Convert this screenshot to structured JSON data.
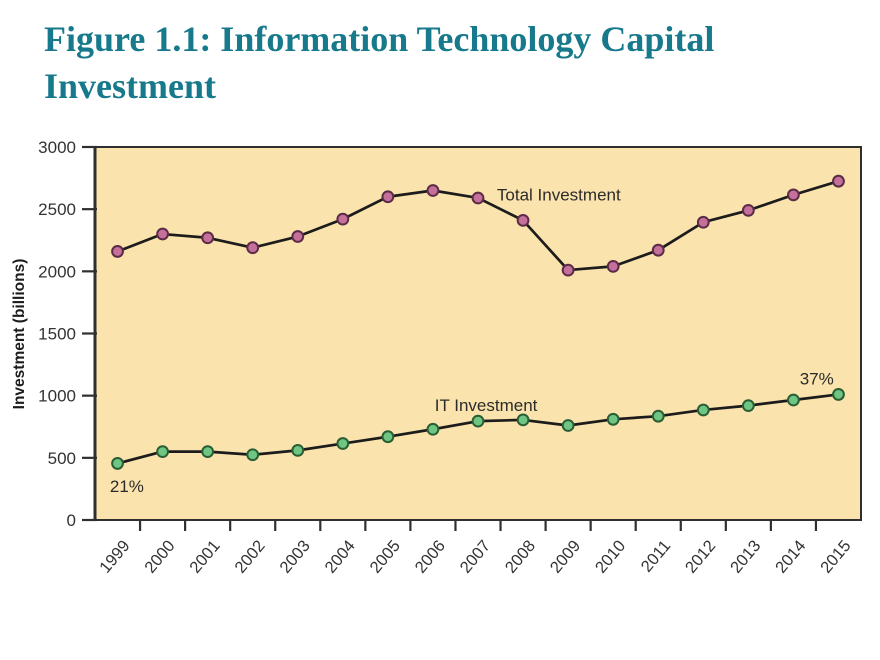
{
  "page": {
    "title_lines": [
      "Figure 1.1: Information Technology Capital",
      "Investment"
    ],
    "title_color": "#17798C",
    "background": "#FFFFFF"
  },
  "chart_data": {
    "type": "line",
    "title": "Figure 1.1: Information Technology Capital Investment",
    "xlabel": "",
    "ylabel": "Investment (billions)",
    "categories": [
      "1999",
      "2000",
      "2001",
      "2002",
      "2003",
      "2004",
      "2005",
      "2006",
      "2007",
      "2008",
      "2009",
      "2010",
      "2011",
      "2012",
      "2013",
      "2014",
      "2015"
    ],
    "series": [
      {
        "name": "Total Investment",
        "values": [
          2160,
          2300,
          2270,
          2190,
          2280,
          2420,
          2600,
          2650,
          2590,
          2410,
          2010,
          2040,
          2170,
          2395,
          2490,
          2615,
          2725
        ],
        "line_color": "#1C1C1C",
        "marker_fill": "#C4709B",
        "marker_stroke": "#5C2B47"
      },
      {
        "name": "IT Investment",
        "values": [
          455,
          550,
          550,
          525,
          560,
          615,
          670,
          730,
          795,
          805,
          760,
          810,
          835,
          885,
          920,
          965,
          1010
        ],
        "line_color": "#1C1C1C",
        "marker_fill": "#6FC583",
        "marker_stroke": "#2A5E34"
      }
    ],
    "ylim": [
      0,
      3000
    ],
    "yticks": [
      0,
      500,
      1000,
      1500,
      2000,
      2500,
      3000
    ],
    "grid": "off",
    "legend_position": "inline-labels",
    "plot_bg": "#FAE3AC",
    "axis_color": "#2F2F2F",
    "tick_label_color": "#333333",
    "annotation_color": "#2B2B2B",
    "annotations": [
      {
        "text": "Total Investment",
        "x": 8.42,
        "y": 2570,
        "align": "start"
      },
      {
        "text": "IT Investment",
        "x": 7.04,
        "y": 875,
        "align": "start"
      },
      {
        "text": "21%",
        "x": -0.17,
        "y": 225,
        "align": "start"
      },
      {
        "text": "37%",
        "x": 15.14,
        "y": 1090,
        "align": "start"
      }
    ]
  }
}
